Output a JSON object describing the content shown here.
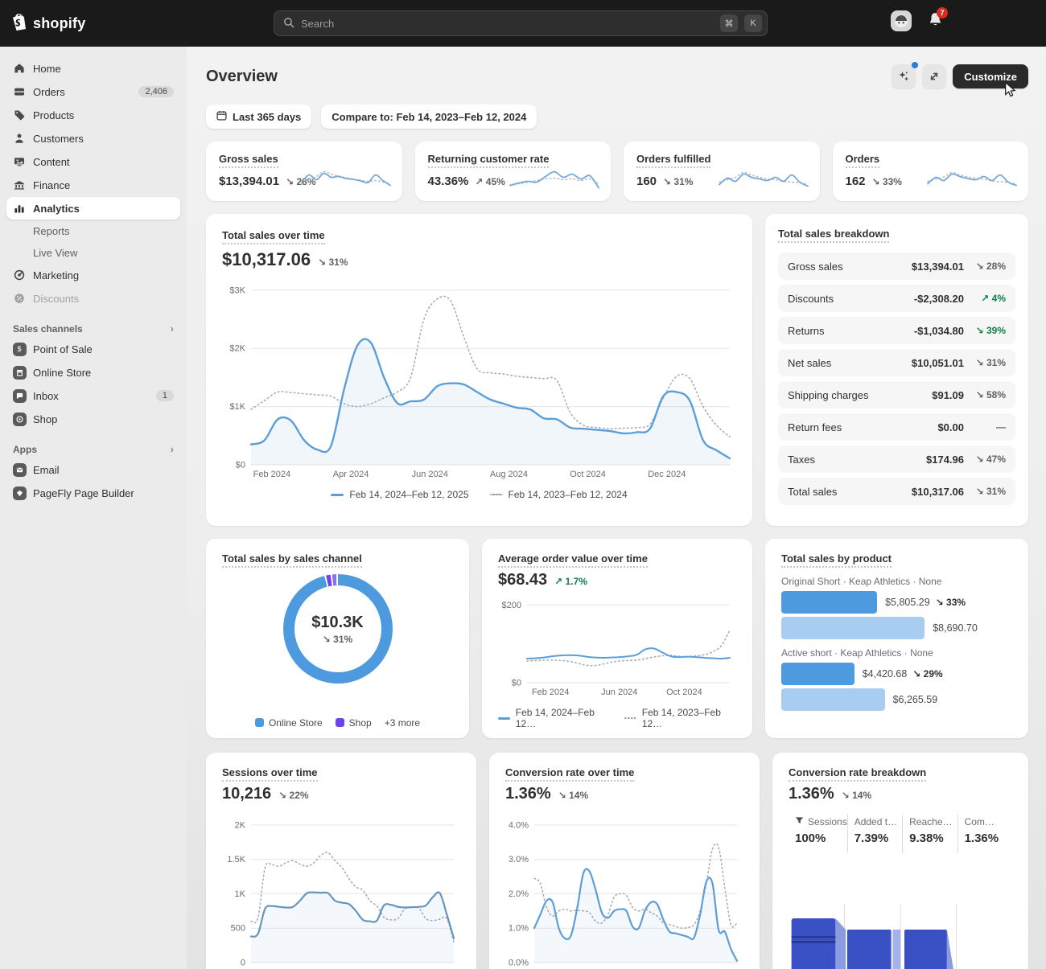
{
  "topbar": {
    "logo": "shopify",
    "search_placeholder": "Search",
    "key_cmd": "⌘",
    "key_k": "K",
    "notification_count": "7"
  },
  "sidebar": {
    "home": "Home",
    "orders": "Orders",
    "orders_badge": "2,406",
    "products": "Products",
    "customers": "Customers",
    "content": "Content",
    "finance": "Finance",
    "analytics": "Analytics",
    "reports": "Reports",
    "live_view": "Live View",
    "marketing": "Marketing",
    "discounts": "Discounts",
    "sales_channels_label": "Sales channels",
    "pos": "Point of Sale",
    "online_store": "Online Store",
    "inbox": "Inbox",
    "inbox_badge": "1",
    "shop": "Shop",
    "apps_label": "Apps",
    "email": "Email",
    "pagefly": "PageFly Page Builder"
  },
  "header": {
    "title": "Overview",
    "customize": "Customize"
  },
  "filters": {
    "range": "Last 365 days",
    "compare": "Compare to: Feb 14, 2023–Feb 12, 2024"
  },
  "metrics": [
    {
      "title": "Gross sales",
      "value": "$13,394.01",
      "delta": "↘ 28%"
    },
    {
      "title": "Returning customer rate",
      "value": "43.36%",
      "delta": "↗ 45%"
    },
    {
      "title": "Orders fulfilled",
      "value": "160",
      "delta": "↘ 31%"
    },
    {
      "title": "Orders",
      "value": "162",
      "delta": "↘ 33%"
    }
  ],
  "total_sales": {
    "title": "Total sales over time",
    "value": "$10,317.06",
    "delta": "↘ 31%",
    "legend_current": "Feb 14, 2024–Feb 12, 2025",
    "legend_previous": "Feb 14, 2023–Feb 12, 2024"
  },
  "breakdown": {
    "title": "Total sales breakdown",
    "rows": [
      {
        "label": "Gross sales",
        "value": "$13,394.01",
        "delta": "↘ 28%"
      },
      {
        "label": "Discounts",
        "value": "-$2,308.20",
        "delta": "↗ 4%"
      },
      {
        "label": "Returns",
        "value": "-$1,034.80",
        "delta": "↘ 39%"
      },
      {
        "label": "Net sales",
        "value": "$10,051.01",
        "delta": "↘ 31%"
      },
      {
        "label": "Shipping charges",
        "value": "$91.09",
        "delta": "↘ 58%"
      },
      {
        "label": "Return fees",
        "value": "$0.00",
        "delta": "—"
      },
      {
        "label": "Taxes",
        "value": "$174.96",
        "delta": "↘ 47%"
      },
      {
        "label": "Total sales",
        "value": "$10,317.06",
        "delta": "↘ 31%"
      }
    ]
  },
  "channels": {
    "title": "Total sales by sales channel",
    "center_value": "$10.3K",
    "center_delta": "↘ 31%",
    "legend": [
      {
        "label": "Online Store"
      },
      {
        "label": "Shop"
      },
      {
        "label": "+3 more"
      }
    ]
  },
  "aov": {
    "title": "Average order value over time",
    "value": "$68.43",
    "delta": "↗ 1.7%",
    "legend_current": "Feb 14, 2024–Feb 12…",
    "legend_previous": "Feb 14, 2023–Feb 12…"
  },
  "products": {
    "title": "Total sales by product",
    "groups": [
      {
        "name": "Original Short · Keap Athletics · None",
        "current": "$5,805.29",
        "delta": "↘ 33%",
        "previous": "$8,690.70"
      },
      {
        "name": "Active short · Keap Athletics · None",
        "current": "$4,420.68",
        "delta": "↘ 29%",
        "previous": "$6,265.59"
      }
    ]
  },
  "sessions": {
    "title": "Sessions over time",
    "value": "10,216",
    "delta": "↘ 22%"
  },
  "conversion": {
    "title": "Conversion rate over time",
    "value": "1.36%",
    "delta": "↘ 14%"
  },
  "funnel": {
    "title": "Conversion rate breakdown",
    "value": "1.36%",
    "delta": "↘ 14%",
    "steps": [
      {
        "label": "Sessions",
        "value": "100%"
      },
      {
        "label": "Added t…",
        "value": "7.39%"
      },
      {
        "label": "Reache…",
        "value": "9.38%"
      },
      {
        "label": "Com…",
        "value": "1.36%"
      }
    ]
  },
  "chart_data": [
    {
      "id": "total-sales",
      "type": "line",
      "title": "Total sales over time",
      "ylim": [
        0,
        3150
      ],
      "yticks": [
        {
          "v": 0,
          "label": "$0"
        },
        {
          "v": 1000,
          "label": "$1K"
        },
        {
          "v": 2000,
          "label": "$2K"
        },
        {
          "v": 3000,
          "label": "$3K"
        }
      ],
      "xlabels": [
        {
          "pos": 0.02,
          "label": "Feb 2024"
        },
        {
          "pos": 0.185,
          "label": "Apr 2024"
        },
        {
          "pos": 0.35,
          "label": "Jun 2024"
        },
        {
          "pos": 0.515,
          "label": "Aug 2024"
        },
        {
          "pos": 0.68,
          "label": "Oct 2024"
        },
        {
          "pos": 0.845,
          "label": "Dec 2024"
        }
      ],
      "series": [
        {
          "name": "Feb 14, 2023–Feb 12, 2024",
          "style": "dotted",
          "color": "#a6adb4",
          "values": [
            950,
            1100,
            1250,
            1240,
            1220,
            1200,
            1180,
            1050,
            1000,
            1050,
            1150,
            1250,
            1500,
            2500,
            2850,
            2820,
            2200,
            1650,
            1580,
            1560,
            1520,
            1500,
            1480,
            1450,
            900,
            680,
            640,
            620,
            630,
            640,
            700,
            1150,
            1520,
            1480,
            1000,
            680,
            480
          ]
        },
        {
          "name": "Feb 14, 2024–Feb 12, 2025",
          "style": "solid",
          "color": "#5c9fd8",
          "lw": 2.4,
          "fill": "rgba(120,170,220,0.10)",
          "values": [
            350,
            420,
            780,
            760,
            420,
            260,
            320,
            1300,
            2050,
            2100,
            1500,
            1060,
            1090,
            1120,
            1350,
            1400,
            1380,
            1250,
            1120,
            1050,
            980,
            950,
            800,
            780,
            640,
            620,
            600,
            580,
            540,
            560,
            620,
            1180,
            1250,
            1100,
            420,
            250,
            110
          ]
        }
      ]
    },
    {
      "id": "aov",
      "type": "line",
      "title": "Average order value over time",
      "ylim": [
        0,
        215
      ],
      "yticks": [
        {
          "v": 0,
          "label": "$0"
        },
        {
          "v": 200,
          "label": "$200"
        }
      ],
      "xlabels": [
        {
          "pos": 0.06,
          "label": "Feb 2024"
        },
        {
          "pos": 0.4,
          "label": "Jun 2024"
        },
        {
          "pos": 0.72,
          "label": "Oct 2024"
        }
      ],
      "series": [
        {
          "name": "previous",
          "style": "dotted",
          "color": "#a6adb4",
          "values": [
            56,
            57,
            58,
            58,
            57,
            55,
            50,
            45,
            44,
            48,
            53,
            56,
            57,
            58,
            62,
            66,
            69,
            70,
            68,
            67,
            69,
            72,
            80,
            95,
            135
          ]
        },
        {
          "name": "current",
          "style": "solid",
          "color": "#5c9fd8",
          "lw": 2,
          "values": [
            62,
            63,
            65,
            68,
            70,
            71,
            70,
            67,
            65,
            64,
            65,
            66,
            68,
            72,
            86,
            88,
            78,
            68,
            66,
            67,
            66,
            64,
            63,
            62,
            64
          ]
        }
      ]
    },
    {
      "id": "sessions",
      "type": "line",
      "title": "Sessions over time",
      "ylim": [
        0,
        2150
      ],
      "yticks": [
        {
          "v": 0,
          "label": "0"
        },
        {
          "v": 500,
          "label": "500"
        },
        {
          "v": 1000,
          "label": "1K"
        },
        {
          "v": 1500,
          "label": "1.5K"
        },
        {
          "v": 2000,
          "label": "2K"
        }
      ],
      "series": [
        {
          "name": "previous",
          "style": "dotted",
          "color": "#a6adb4",
          "values": [
            600,
            650,
            1380,
            1420,
            1400,
            1450,
            1480,
            1430,
            1400,
            1450,
            1560,
            1600,
            1480,
            1380,
            1220,
            1100,
            1050,
            900,
            820,
            660,
            620,
            640,
            780,
            800,
            790,
            640,
            610,
            630,
            640,
            300
          ]
        },
        {
          "name": "current",
          "style": "solid",
          "color": "#6695bd",
          "lw": 2.2,
          "fill": "rgba(120,170,220,0.08)",
          "values": [
            380,
            420,
            780,
            820,
            810,
            800,
            810,
            900,
            1010,
            1020,
            1015,
            1010,
            900,
            870,
            850,
            750,
            620,
            600,
            610,
            830,
            840,
            810,
            800,
            805,
            810,
            830,
            950,
            1010,
            700,
            350
          ]
        }
      ]
    },
    {
      "id": "conversion",
      "type": "line",
      "title": "Conversion rate over time",
      "ylim": [
        0,
        4.3
      ],
      "yticks": [
        {
          "v": 0,
          "label": "0.0%"
        },
        {
          "v": 1,
          "label": "1.0%"
        },
        {
          "v": 2,
          "label": "2.0%"
        },
        {
          "v": 3,
          "label": "3.0%"
        },
        {
          "v": 4,
          "label": "4.0%"
        }
      ],
      "series": [
        {
          "name": "previous",
          "style": "dotted",
          "color": "#a6adb4",
          "values": [
            2.45,
            2.3,
            1.6,
            1.35,
            1.5,
            1.55,
            1.5,
            1.52,
            1.5,
            1.45,
            1.2,
            1.15,
            1.4,
            1.9,
            2.0,
            1.95,
            1.6,
            1.5,
            1.55,
            1.45,
            1.35,
            1.15,
            1.1,
            1.05,
            1.0,
            1.02,
            1.1,
            1.5,
            2.3,
            3.3,
            3.35,
            2.2,
            1.1,
            1.15
          ]
        },
        {
          "name": "current",
          "style": "solid",
          "color": "#5c9fd8",
          "lw": 2.2,
          "fill": "rgba(120,170,220,0.08)",
          "values": [
            1.0,
            1.4,
            1.8,
            1.75,
            1.0,
            0.7,
            0.8,
            1.6,
            2.6,
            2.65,
            2.1,
            1.45,
            1.3,
            1.5,
            1.55,
            1.5,
            1.05,
            1.0,
            1.5,
            1.75,
            1.7,
            1.25,
            0.9,
            0.85,
            0.8,
            0.75,
            0.72,
            1.4,
            2.35,
            2.3,
            0.95,
            0.9,
            0.4,
            0.05
          ]
        }
      ]
    },
    {
      "id": "spark-gross",
      "type": "line",
      "ylim": [
        15,
        75
      ],
      "series": [
        {
          "style": "dotted",
          "color": "#b7bdc3",
          "values": [
            42,
            46,
            52,
            64,
            58,
            53,
            49,
            45,
            43,
            40,
            42,
            38,
            34
          ]
        },
        {
          "style": "solid",
          "color": "#74a9dc",
          "lw": 1.8,
          "values": [
            38,
            56,
            44,
            60,
            50,
            52,
            47,
            45,
            41,
            37,
            56,
            42,
            30
          ]
        }
      ]
    },
    {
      "id": "spark-returning",
      "type": "line",
      "ylim": [
        15,
        75
      ],
      "series": [
        {
          "style": "dotted",
          "color": "#b7bdc3",
          "values": [
            30,
            34,
            38,
            42,
            46,
            48,
            44,
            46,
            42,
            46,
            34
          ]
        },
        {
          "style": "solid",
          "color": "#74a9dc",
          "lw": 1.8,
          "values": [
            30,
            36,
            40,
            38,
            52,
            64,
            50,
            58,
            46,
            54,
            24
          ]
        }
      ]
    },
    {
      "id": "spark-fulfilled",
      "type": "line",
      "ylim": [
        15,
        75
      ],
      "series": [
        {
          "style": "dotted",
          "color": "#b7bdc3",
          "values": [
            38,
            44,
            50,
            62,
            56,
            50,
            46,
            44,
            40,
            38,
            36,
            32
          ]
        },
        {
          "style": "solid",
          "color": "#74a9dc",
          "lw": 1.8,
          "values": [
            32,
            48,
            40,
            58,
            50,
            46,
            42,
            50,
            40,
            56,
            38,
            28
          ]
        }
      ]
    },
    {
      "id": "spark-orders",
      "type": "line",
      "ylim": [
        15,
        75
      ],
      "series": [
        {
          "style": "dotted",
          "color": "#b7bdc3",
          "values": [
            40,
            45,
            51,
            62,
            56,
            51,
            47,
            45,
            41,
            39,
            37,
            33
          ]
        },
        {
          "style": "solid",
          "color": "#74a9dc",
          "lw": 1.8,
          "values": [
            34,
            50,
            42,
            58,
            52,
            47,
            44,
            52,
            42,
            56,
            38,
            30
          ]
        }
      ]
    },
    {
      "id": "channel-donut",
      "type": "pie",
      "gap": 0.5,
      "slices": [
        {
          "label": "Online Store",
          "color": "#4e9adf",
          "pct": 96.0
        },
        {
          "label": "Shop",
          "color": "#6d43ee",
          "pct": 1.3
        },
        {
          "label": "Other",
          "color": "#8f6df2",
          "pct": 1.2
        }
      ],
      "center_value": "$10.3K",
      "center_delta": "↘ 31%"
    },
    {
      "id": "product-bars",
      "type": "bar",
      "max": 14000,
      "groups": [
        {
          "name": "Original Short · Keap Athletics · None",
          "current": 5805.29,
          "previous": 8690.7
        },
        {
          "name": "Active short · Keap Athletics · None",
          "current": 4420.68,
          "previous": 6265.59
        }
      ]
    }
  ]
}
